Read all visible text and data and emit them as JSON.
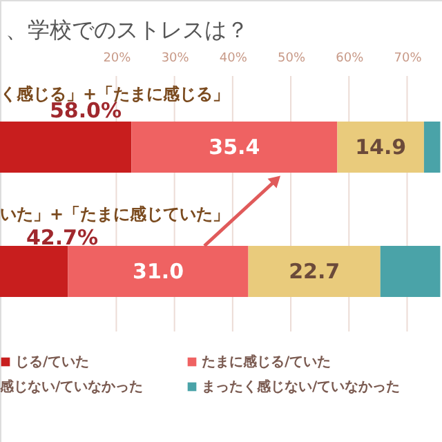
{
  "chart_data": {
    "type": "bar",
    "orientation": "horizontal",
    "stacked": true,
    "title": "、学校でのストレスは？",
    "categories": [
      null,
      null
    ],
    "xlim": [
      0,
      76
    ],
    "xticks": [
      {
        "value": 20,
        "label": "20%"
      },
      {
        "value": 30,
        "label": "30%"
      },
      {
        "value": 40,
        "label": "40%"
      },
      {
        "value": 50,
        "label": "50%"
      },
      {
        "value": 60,
        "label": "60%"
      },
      {
        "value": 70,
        "label": "70%"
      }
    ],
    "grid": "x",
    "legend": "bottom",
    "series": [
      {
        "name": "じる/ていた",
        "color": "#c81e1e",
        "values": [
          22.6,
          11.7
        ],
        "value_labels": [
          null,
          null
        ]
      },
      {
        "name": "たまに感じる/ていた",
        "color": "#ef6262",
        "values": [
          35.4,
          31.0
        ],
        "value_labels": [
          "35.4",
          "31.0"
        ]
      },
      {
        "color": "#e9cb7c",
        "values": [
          14.9,
          22.7
        ],
        "value_labels": [
          "14.9",
          "22.7"
        ]
      },
      {
        "name": "まったく感じない/ていなかった",
        "color": "#4aa3a8",
        "values": [
          2.8,
          10.3
        ],
        "value_labels": [
          null,
          null
        ]
      }
    ],
    "annotations": [
      "く感じる」+「たまに感じる」",
      "58.0%",
      "いた」+「たまに感じていた」",
      "42.7%",
      "感じない/ていなかった"
    ]
  }
}
